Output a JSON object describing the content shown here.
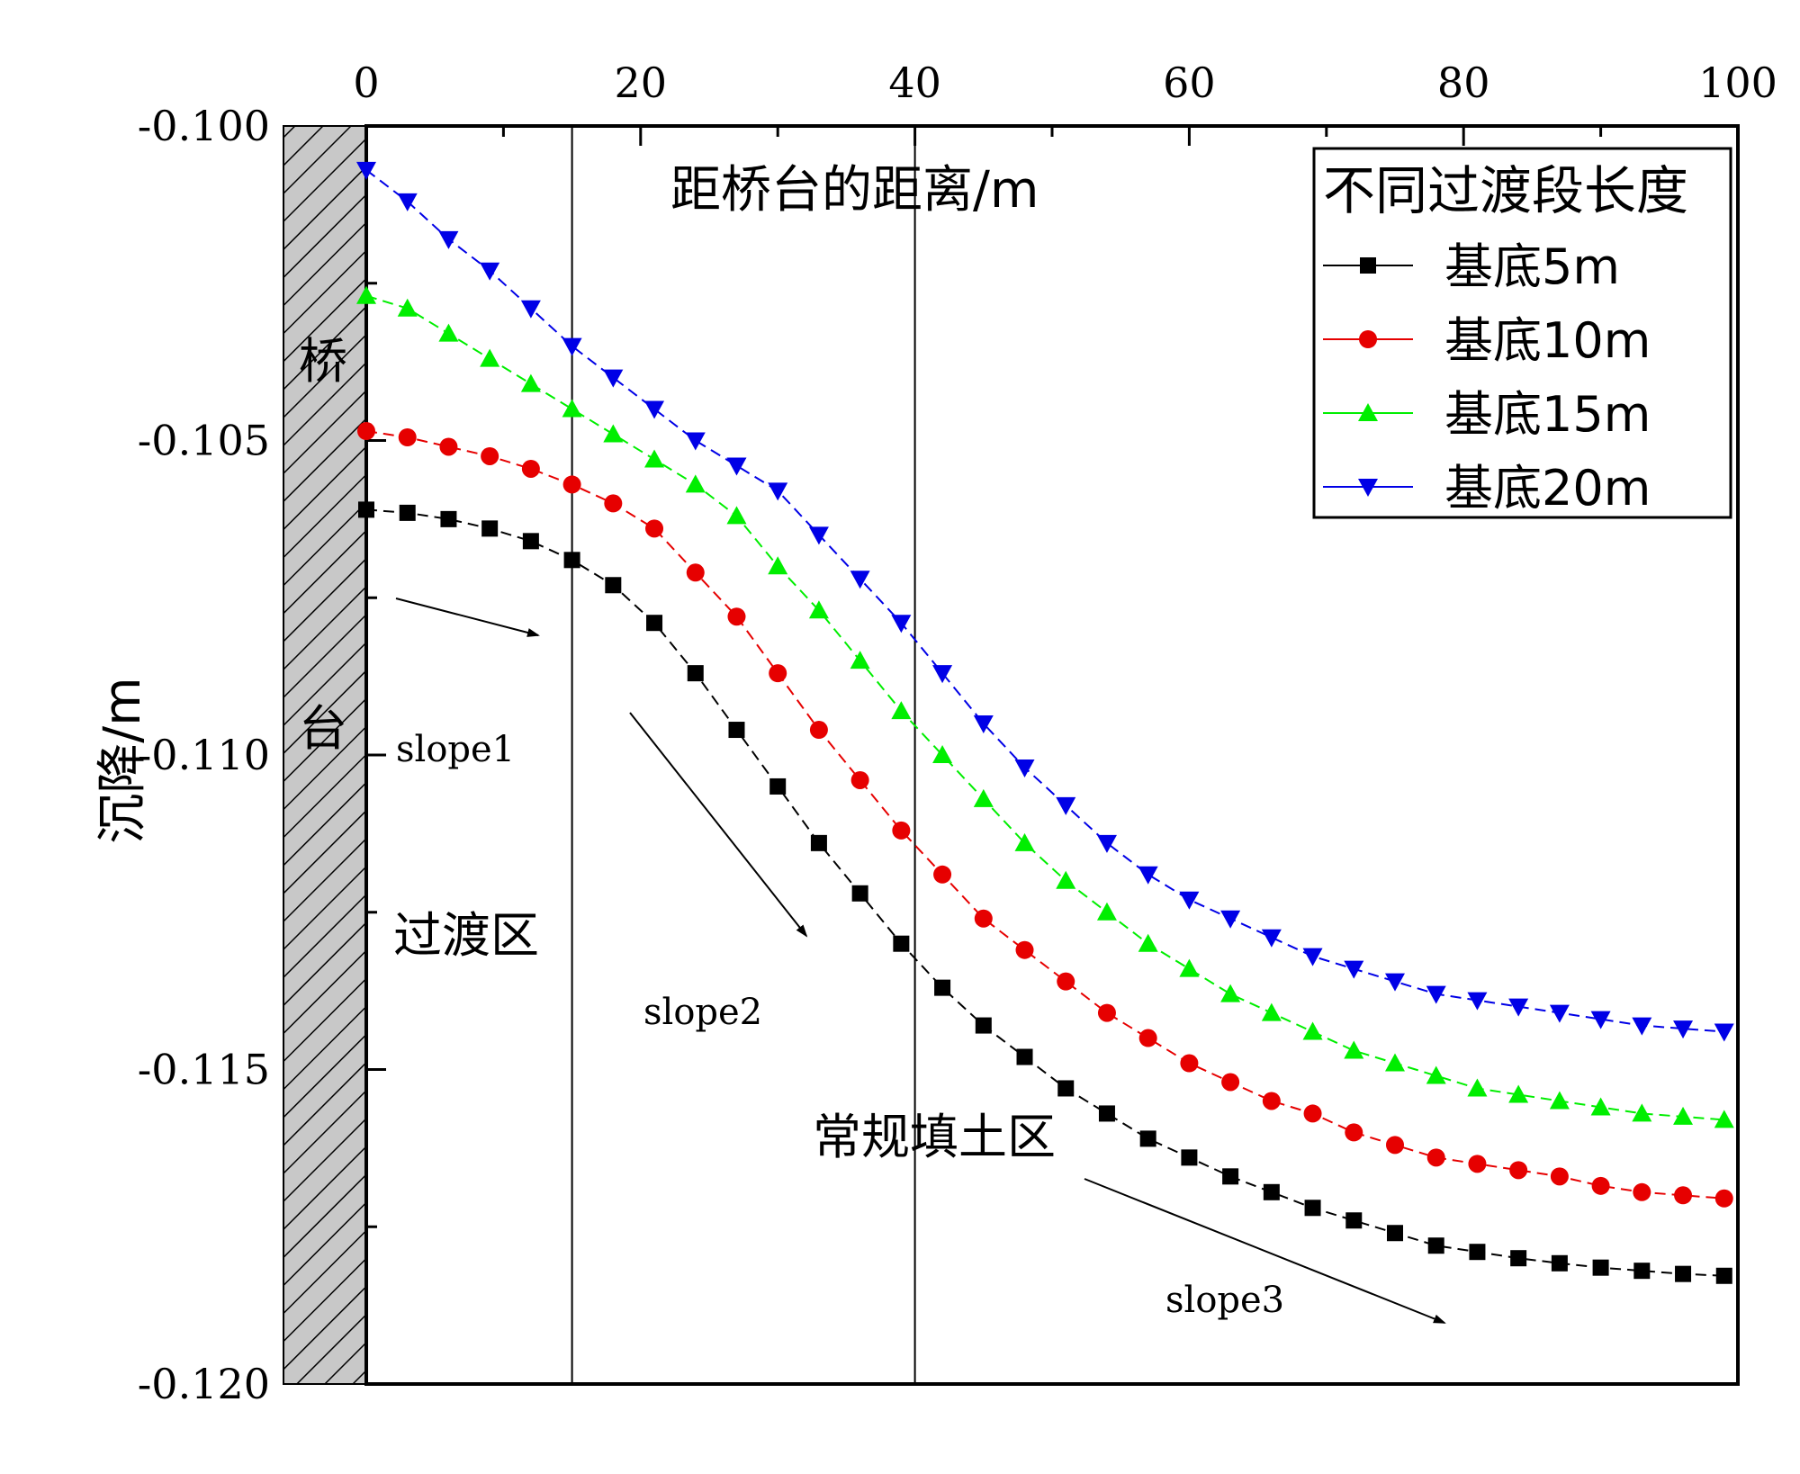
{
  "chart_data": {
    "type": "line",
    "xlabel": "距桥台的距离/m",
    "ylabel": "沉降/m",
    "xlim": [
      0,
      100
    ],
    "ylim": [
      -0.12,
      -0.1
    ],
    "x_ticks": [
      0,
      20,
      40,
      60,
      80,
      100
    ],
    "y_ticks": [
      -0.1,
      -0.105,
      -0.11,
      -0.115,
      -0.12
    ],
    "x_tick_labels": [
      "0",
      "20",
      "40",
      "60",
      "80",
      "100"
    ],
    "y_tick_labels": [
      "-0.100",
      "-0.105",
      "-0.110",
      "-0.115",
      "-0.120"
    ],
    "legend_title": "不同过渡段长度",
    "legend_position": "top-right",
    "x": [
      0,
      3,
      6,
      9,
      12,
      15,
      18,
      21,
      24,
      27,
      30,
      33,
      36,
      39,
      42,
      45,
      48,
      51,
      54,
      57,
      60,
      63,
      66,
      69,
      72,
      75,
      78,
      81,
      84,
      87,
      90,
      93,
      96,
      99
    ],
    "series": [
      {
        "name": "基底5m",
        "color": "#000000",
        "marker": "square",
        "values": [
          -0.1061,
          -0.10615,
          -0.10625,
          -0.1064,
          -0.1066,
          -0.1069,
          -0.1073,
          -0.1079,
          -0.1087,
          -0.1096,
          -0.1105,
          -0.1114,
          -0.1122,
          -0.113,
          -0.1137,
          -0.1143,
          -0.1148,
          -0.1153,
          -0.1157,
          -0.1161,
          -0.1164,
          -0.1167,
          -0.11695,
          -0.1172,
          -0.1174,
          -0.1176,
          -0.1178,
          -0.1179,
          -0.118,
          -0.11808,
          -0.11815,
          -0.1182,
          -0.11825,
          -0.11828
        ]
      },
      {
        "name": "基底10m",
        "color": "#e60000",
        "marker": "circle",
        "values": [
          -0.10485,
          -0.10495,
          -0.1051,
          -0.10525,
          -0.10545,
          -0.1057,
          -0.106,
          -0.1064,
          -0.1071,
          -0.1078,
          -0.1087,
          -0.1096,
          -0.1104,
          -0.1112,
          -0.1119,
          -0.1126,
          -0.1131,
          -0.1136,
          -0.1141,
          -0.1145,
          -0.1149,
          -0.1152,
          -0.1155,
          -0.1157,
          -0.116,
          -0.1162,
          -0.1164,
          -0.1165,
          -0.1166,
          -0.1167,
          -0.11685,
          -0.11695,
          -0.117,
          -0.11705
        ]
      },
      {
        "name": "基底15m",
        "color": "#00ee00",
        "marker": "triangle-up",
        "values": [
          -0.1027,
          -0.1029,
          -0.1033,
          -0.1037,
          -0.1041,
          -0.1045,
          -0.1049,
          -0.1053,
          -0.1057,
          -0.1062,
          -0.107,
          -0.1077,
          -0.1085,
          -0.1093,
          -0.11,
          -0.1107,
          -0.1114,
          -0.112,
          -0.1125,
          -0.113,
          -0.1134,
          -0.1138,
          -0.1141,
          -0.1144,
          -0.1147,
          -0.1149,
          -0.1151,
          -0.1153,
          -0.1154,
          -0.1155,
          -0.1156,
          -0.1157,
          -0.11575,
          -0.1158
        ]
      },
      {
        "name": "基底20m",
        "color": "#0000e6",
        "marker": "triangle-down",
        "values": [
          -0.1007,
          -0.1012,
          -0.1018,
          -0.1023,
          -0.1029,
          -0.1035,
          -0.104,
          -0.1045,
          -0.105,
          -0.1054,
          -0.1058,
          -0.1065,
          -0.1072,
          -0.1079,
          -0.1087,
          -0.1095,
          -0.1102,
          -0.1108,
          -0.1114,
          -0.1119,
          -0.1123,
          -0.1126,
          -0.1129,
          -0.1132,
          -0.1134,
          -0.1136,
          -0.1138,
          -0.1139,
          -0.114,
          -0.1141,
          -0.1142,
          -0.1143,
          -0.11435,
          -0.1144
        ]
      }
    ],
    "divider_x": [
      15,
      40
    ],
    "annotations": {
      "abutment_top": "桥",
      "abutment_bottom": "台",
      "transition_zone": "过渡区",
      "regular_zone": "常规填土区",
      "slope1": "slope1",
      "slope2": "slope2",
      "slope3": "slope3"
    }
  }
}
